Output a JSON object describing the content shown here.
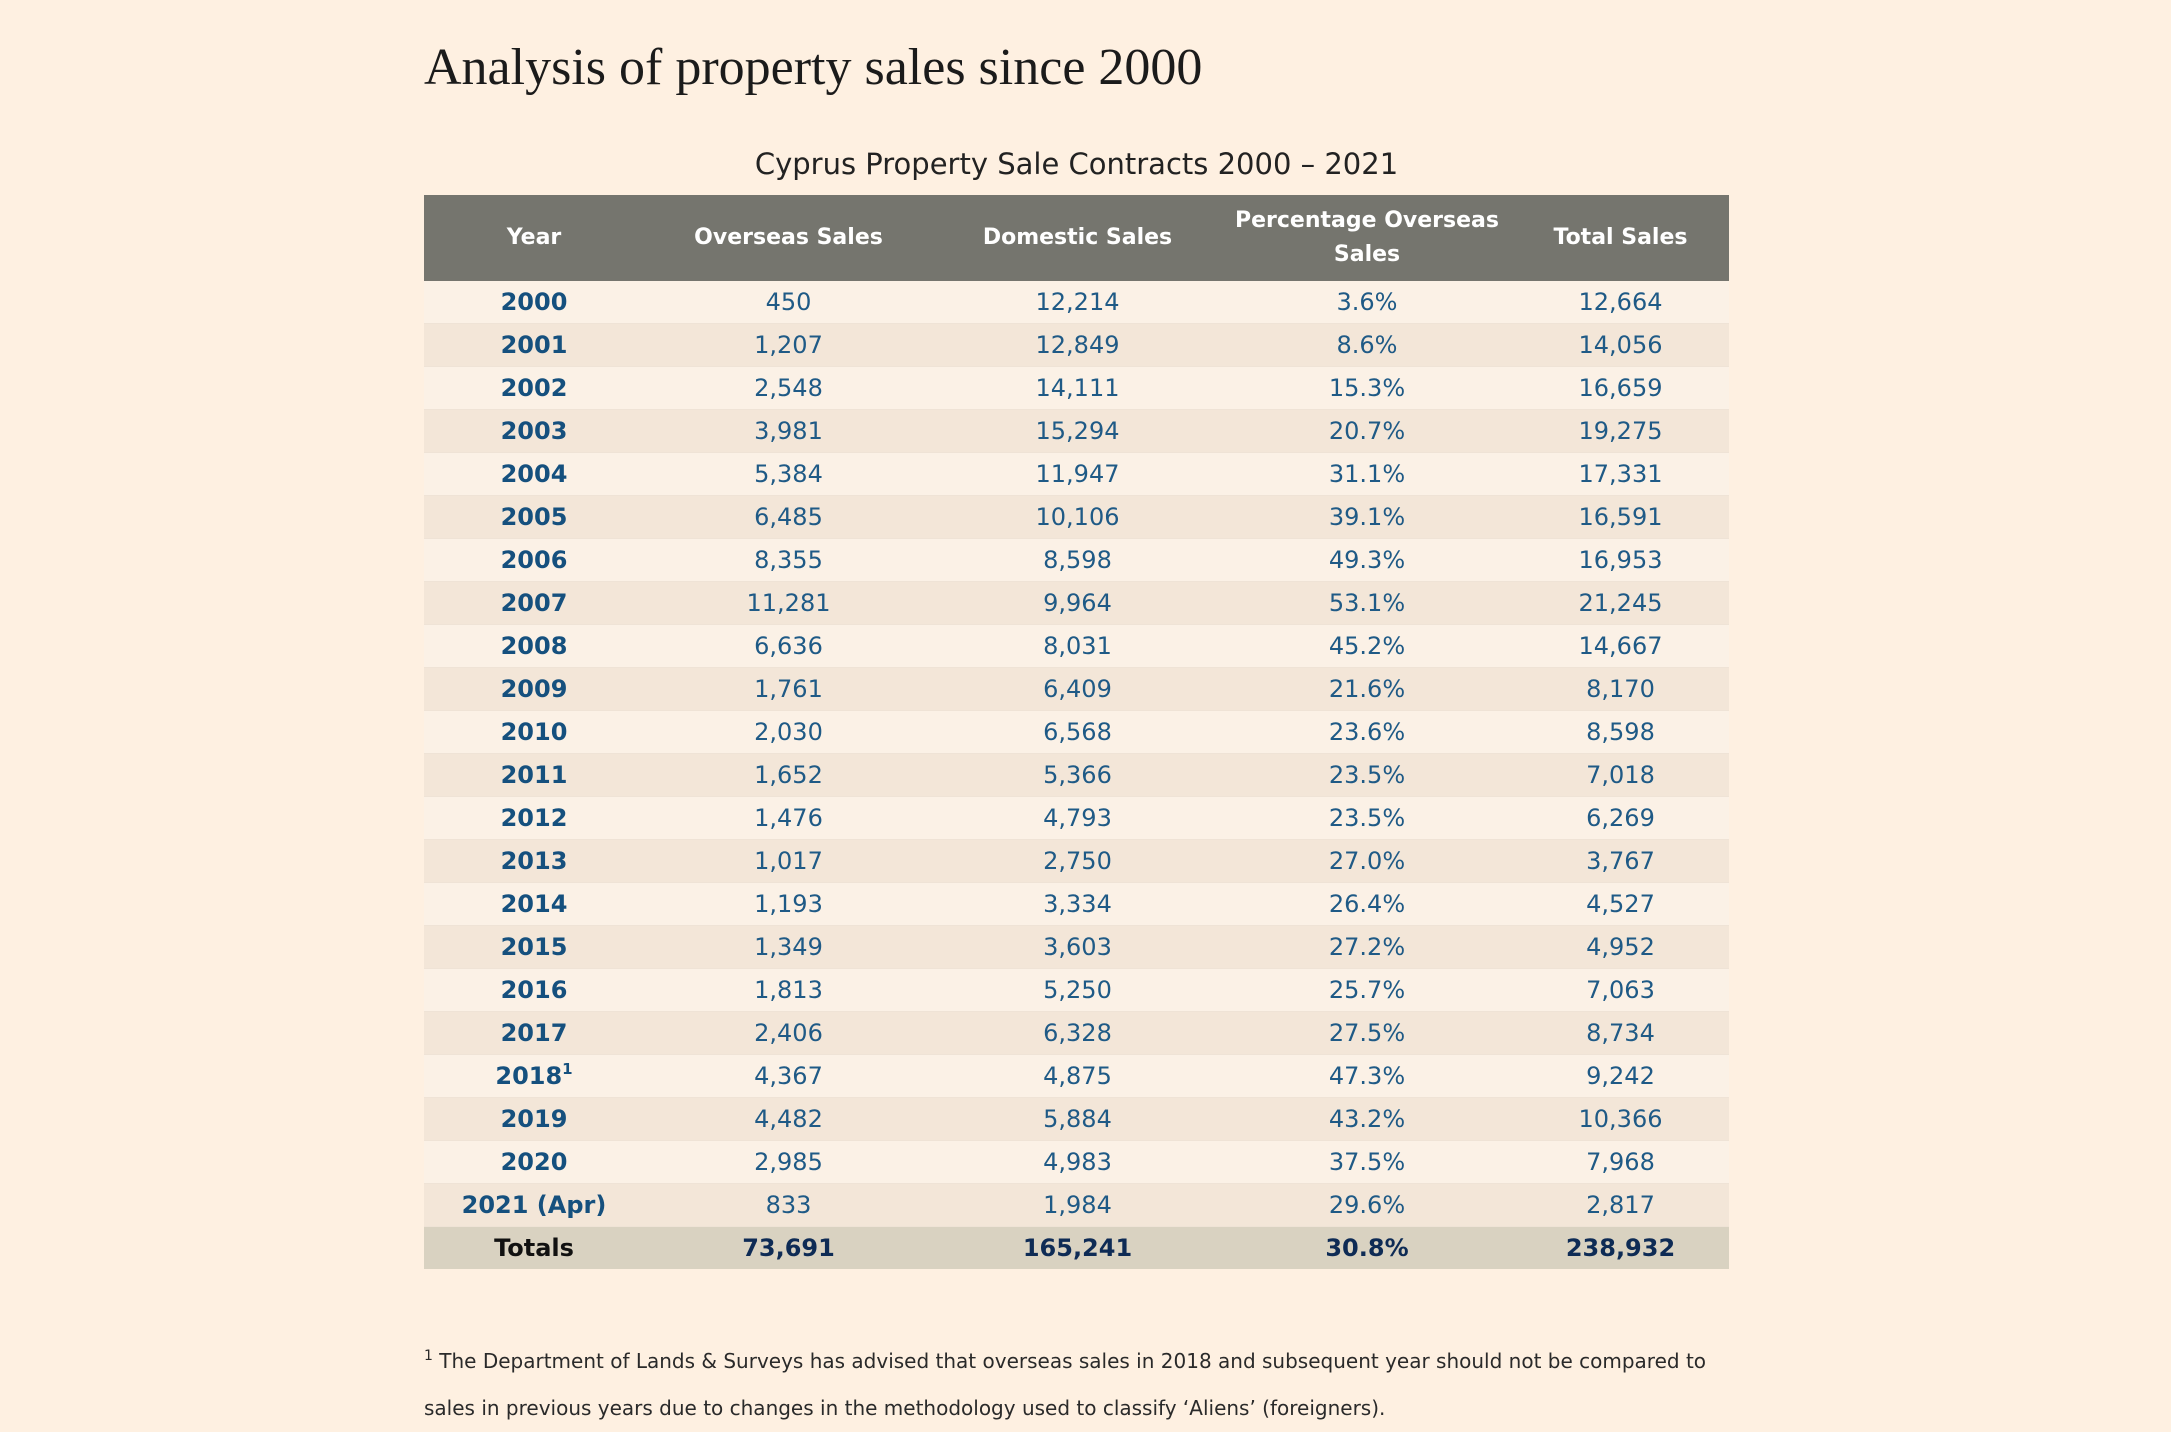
{
  "page": {
    "heading": "Analysis of property sales since 2000",
    "caption": "Cyprus Property Sale Contracts 2000 – 2021"
  },
  "table": {
    "headers": [
      "Year",
      "Overseas Sales",
      "Domestic Sales",
      "Percentage Overseas Sales",
      "Total Sales"
    ],
    "rows": [
      {
        "year": "2000",
        "sup": "",
        "overseas": "450",
        "domestic": "12,214",
        "pct": "3.6%",
        "total": "12,664"
      },
      {
        "year": "2001",
        "sup": "",
        "overseas": "1,207",
        "domestic": "12,849",
        "pct": "8.6%",
        "total": "14,056"
      },
      {
        "year": "2002",
        "sup": "",
        "overseas": "2,548",
        "domestic": "14,111",
        "pct": "15.3%",
        "total": "16,659"
      },
      {
        "year": "2003",
        "sup": "",
        "overseas": "3,981",
        "domestic": "15,294",
        "pct": "20.7%",
        "total": "19,275"
      },
      {
        "year": "2004",
        "sup": "",
        "overseas": "5,384",
        "domestic": "11,947",
        "pct": "31.1%",
        "total": "17,331"
      },
      {
        "year": "2005",
        "sup": "",
        "overseas": "6,485",
        "domestic": "10,106",
        "pct": "39.1%",
        "total": "16,591"
      },
      {
        "year": "2006",
        "sup": "",
        "overseas": "8,355",
        "domestic": "8,598",
        "pct": "49.3%",
        "total": "16,953"
      },
      {
        "year": "2007",
        "sup": "",
        "overseas": "11,281",
        "domestic": "9,964",
        "pct": "53.1%",
        "total": "21,245"
      },
      {
        "year": "2008",
        "sup": "",
        "overseas": "6,636",
        "domestic": "8,031",
        "pct": "45.2%",
        "total": "14,667"
      },
      {
        "year": "2009",
        "sup": "",
        "overseas": "1,761",
        "domestic": "6,409",
        "pct": "21.6%",
        "total": "8,170"
      },
      {
        "year": "2010",
        "sup": "",
        "overseas": "2,030",
        "domestic": "6,568",
        "pct": "23.6%",
        "total": "8,598"
      },
      {
        "year": "2011",
        "sup": "",
        "overseas": "1,652",
        "domestic": "5,366",
        "pct": "23.5%",
        "total": "7,018"
      },
      {
        "year": "2012",
        "sup": "",
        "overseas": "1,476",
        "domestic": "4,793",
        "pct": "23.5%",
        "total": "6,269"
      },
      {
        "year": "2013",
        "sup": "",
        "overseas": "1,017",
        "domestic": "2,750",
        "pct": "27.0%",
        "total": "3,767"
      },
      {
        "year": "2014",
        "sup": "",
        "overseas": "1,193",
        "domestic": "3,334",
        "pct": "26.4%",
        "total": "4,527"
      },
      {
        "year": "2015",
        "sup": "",
        "overseas": "1,349",
        "domestic": "3,603",
        "pct": "27.2%",
        "total": "4,952"
      },
      {
        "year": "2016",
        "sup": "",
        "overseas": "1,813",
        "domestic": "5,250",
        "pct": "25.7%",
        "total": "7,063"
      },
      {
        "year": "2017",
        "sup": "",
        "overseas": "2,406",
        "domestic": "6,328",
        "pct": "27.5%",
        "total": "8,734"
      },
      {
        "year": "2018",
        "sup": "1",
        "overseas": "4,367",
        "domestic": "4,875",
        "pct": "47.3%",
        "total": "9,242"
      },
      {
        "year": "2019",
        "sup": "",
        "overseas": "4,482",
        "domestic": "5,884",
        "pct": "43.2%",
        "total": "10,366"
      },
      {
        "year": "2020",
        "sup": "",
        "overseas": "2,985",
        "domestic": "4,983",
        "pct": "37.5%",
        "total": "7,968"
      },
      {
        "year": "2021 (Apr)",
        "sup": "",
        "overseas": "833",
        "domestic": "1,984",
        "pct": "29.6%",
        "total": "2,817"
      }
    ],
    "totals": {
      "label": "Totals",
      "overseas": "73,691",
      "domestic": "165,241",
      "pct": "30.8%",
      "total": "238,932"
    }
  },
  "footnote": {
    "marker": "1",
    "text": "The Department of Lands & Surveys has advised that overseas sales in 2018 and subsequent year should not be compared to sales in previous years due to changes in the methodology used to classify ‘Aliens’ (foreigners)."
  }
}
